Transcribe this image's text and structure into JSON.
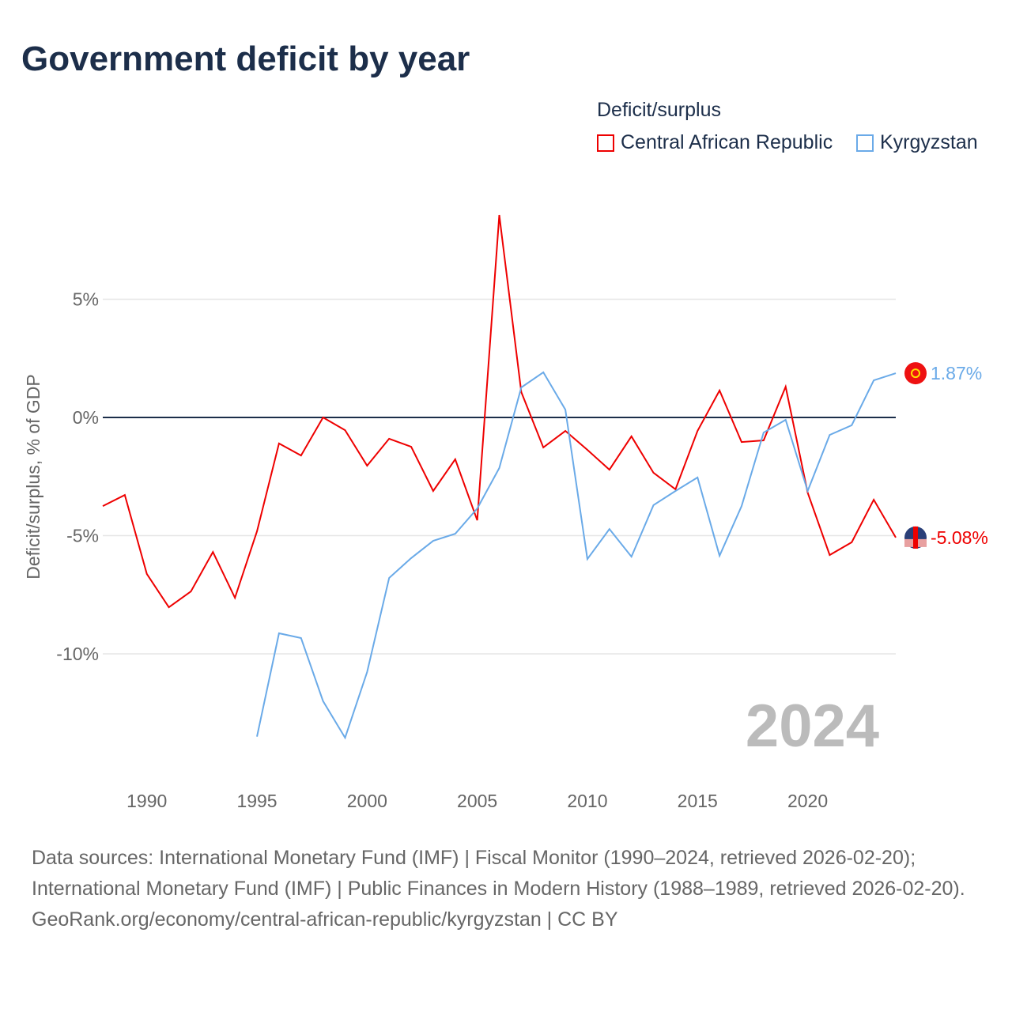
{
  "title": "Government deficit by year",
  "legend_title": "Deficit/surplus",
  "sources": [
    "Data sources: International Monetary Fund (IMF) | Fiscal Monitor (1990–2024, retrieved 2026-02-20); International Monetary Fund (IMF) | Public Finances in Modern History (1988–1989, retrieved 2026-02-20).",
    "GeoRank.org/economy/central-african-republic/kyrgyzstan | CC BY"
  ],
  "chart_data": {
    "type": "line",
    "title": "Government deficit by year",
    "ylabel": "Deficit/surplus, % of GDP",
    "xlabel": "",
    "xlim": [
      1988,
      2024
    ],
    "ylim": [
      -14.5,
      9
    ],
    "xticks": [
      1990,
      1995,
      2000,
      2005,
      2010,
      2015,
      2020
    ],
    "xtick_labels": [
      "1990",
      "1995",
      "2000",
      "2005",
      "2010",
      "2015",
      "2020"
    ],
    "yticks": [
      5,
      0,
      -5,
      -10
    ],
    "ytick_labels": [
      "5%",
      "0%",
      "-5%",
      "-10%"
    ],
    "year_label": "2024",
    "legend_placement": "top-right",
    "series": [
      {
        "name": "Central African Republic",
        "color": "#ee0000",
        "end_label": "-5.08%",
        "x": [
          1988,
          1989,
          1990,
          1991,
          1992,
          1993,
          1994,
          1995,
          1996,
          1997,
          1998,
          1999,
          2000,
          2001,
          2002,
          2003,
          2004,
          2005,
          2006,
          2007,
          2008,
          2009,
          2010,
          2011,
          2012,
          2013,
          2014,
          2015,
          2016,
          2017,
          2018,
          2019,
          2020,
          2021,
          2022,
          2023,
          2024
        ],
        "values": [
          -3.75,
          -3.28,
          -6.62,
          -8.03,
          -7.36,
          -5.69,
          -7.63,
          -4.82,
          -1.1,
          -1.61,
          0.0,
          -0.54,
          -2.04,
          -0.9,
          -1.24,
          -3.11,
          -1.77,
          -4.35,
          8.56,
          1.07,
          -1.27,
          -0.57,
          -1.37,
          -2.21,
          -0.8,
          -2.34,
          -3.04,
          -0.57,
          1.14,
          -1.04,
          -0.97,
          1.3,
          -3.18,
          -5.82,
          -5.28,
          -3.48,
          -5.08
        ]
      },
      {
        "name": "Kyrgyzstan",
        "color": "#6aaae8",
        "end_label": "1.87%",
        "x": [
          1995,
          1996,
          1997,
          1998,
          1999,
          2000,
          2001,
          2002,
          2003,
          2004,
          2005,
          2006,
          2007,
          2008,
          2009,
          2010,
          2011,
          2012,
          2013,
          2014,
          2015,
          2016,
          2017,
          2018,
          2019,
          2020,
          2021,
          2022,
          2023,
          2024
        ],
        "values": [
          -13.5,
          -9.13,
          -9.33,
          -12.0,
          -13.55,
          -10.77,
          -6.79,
          -5.95,
          -5.22,
          -4.92,
          -3.85,
          -2.14,
          1.27,
          1.91,
          0.33,
          -5.99,
          -4.72,
          -5.89,
          -3.71,
          -3.11,
          -2.54,
          -5.85,
          -3.75,
          -0.64,
          -0.1,
          -3.11,
          -0.74,
          -0.33,
          1.57,
          1.87
        ]
      }
    ]
  }
}
